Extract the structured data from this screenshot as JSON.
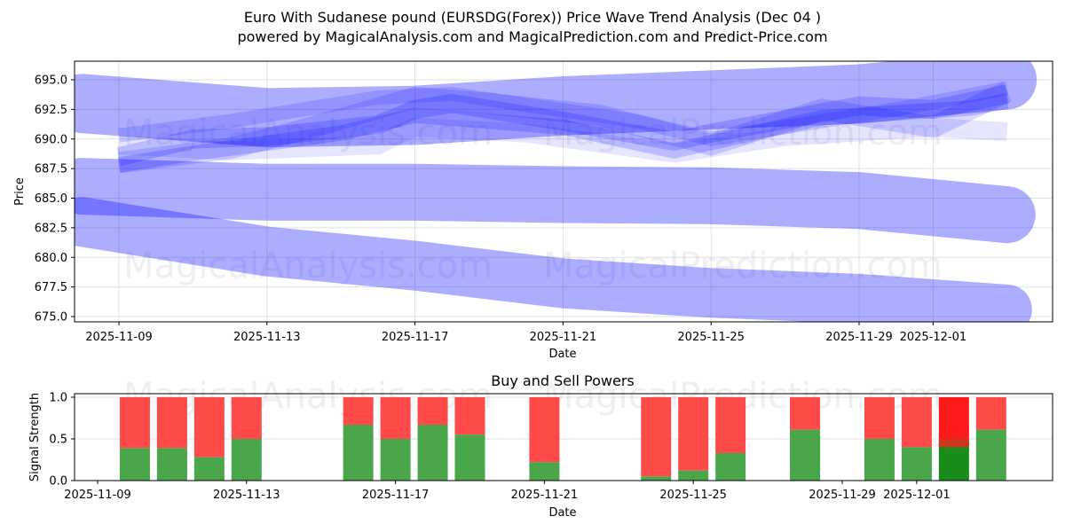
{
  "header": {
    "title": "Euro With Sudanese pound (EURSDG(Forex)) Price Wave Trend Analysis (Dec 04 )",
    "subtitle": "powered by MagicalAnalysis.com and MagicalPrediction.com and Predict-Price.com"
  },
  "watermarks": [
    "MagicalAnalysis.com",
    "MagicalPrediction.com"
  ],
  "colors": {
    "band": "#0000ff",
    "buy": "#4aa64a",
    "sell": "#ff4a4a",
    "buy_highlight": "#1a8c1a",
    "sell_highlight": "#ff1a1a",
    "grid": "#e0e0e0"
  },
  "chart_data": [
    {
      "type": "area",
      "title": "Euro With Sudanese pound (EURSDG(Forex)) Price Wave Trend Analysis (Dec 04 )",
      "xlabel": "Date",
      "ylabel": "Price",
      "ylim": [
        674.8,
        696.5
      ],
      "yticks": [
        "675.0",
        "677.5",
        "680.0",
        "682.5",
        "685.0",
        "687.5",
        "690.0",
        "692.5",
        "695.0"
      ],
      "xticks": [
        "2025-11-09",
        "2025-11-13",
        "2025-11-17",
        "2025-11-21",
        "2025-11-25",
        "2025-11-29",
        "2025-12-01"
      ],
      "grid": true,
      "series": [
        {
          "name": "wave-upper-trend",
          "x": [
            "2025-11-08",
            "2025-11-13",
            "2025-11-17",
            "2025-11-21",
            "2025-11-25",
            "2025-11-29",
            "2025-12-03"
          ],
          "center": [
            693.0,
            691.8,
            692.0,
            692.8,
            693.3,
            693.8,
            695.0
          ],
          "width": 5.0,
          "opacity": 0.32
        },
        {
          "name": "wave-mid-trend",
          "x": [
            "2025-11-08",
            "2025-11-13",
            "2025-11-17",
            "2025-11-21",
            "2025-11-25",
            "2025-11-29",
            "2025-12-03"
          ],
          "center": [
            686.0,
            685.5,
            685.5,
            685.3,
            685.2,
            684.8,
            683.6
          ],
          "width": 4.8,
          "opacity": 0.32
        },
        {
          "name": "wave-lower-trend",
          "x": [
            "2025-11-08",
            "2025-11-13",
            "2025-11-17",
            "2025-11-21",
            "2025-11-25",
            "2025-11-29",
            "2025-12-03"
          ],
          "center": [
            683.0,
            680.5,
            679.3,
            677.8,
            677.0,
            676.5,
            675.6
          ],
          "width": 4.2,
          "opacity": 0.32
        },
        {
          "name": "wave-short-1",
          "x": [
            "2025-11-09",
            "2025-11-11",
            "2025-11-13",
            "2025-11-16",
            "2025-11-17",
            "2025-11-18",
            "2025-11-21",
            "2025-11-24",
            "2025-11-25",
            "2025-11-29",
            "2025-12-01",
            "2025-12-03"
          ],
          "center": [
            688.5,
            690.0,
            690.2,
            691.2,
            692.5,
            693.0,
            691.5,
            689.8,
            690.5,
            692.8,
            692.5,
            693.8
          ],
          "width": 1.6,
          "opacity": 0.18
        },
        {
          "name": "wave-short-2",
          "x": [
            "2025-11-09",
            "2025-11-12",
            "2025-11-14",
            "2025-11-17",
            "2025-11-19",
            "2025-11-22",
            "2025-11-25",
            "2025-11-28",
            "2025-12-01",
            "2025-12-03"
          ],
          "center": [
            688.0,
            689.2,
            690.8,
            693.5,
            693.0,
            692.0,
            689.5,
            692.5,
            691.0,
            694.0
          ],
          "width": 1.8,
          "opacity": 0.15
        },
        {
          "name": "wave-short-3",
          "x": [
            "2025-11-09",
            "2025-11-12",
            "2025-11-16",
            "2025-11-17",
            "2025-11-20",
            "2025-11-24",
            "2025-11-27",
            "2025-12-01",
            "2025-12-03"
          ],
          "center": [
            689.5,
            689.0,
            689.5,
            691.0,
            690.5,
            688.8,
            690.2,
            691.0,
            690.6
          ],
          "width": 1.6,
          "opacity": 0.1
        },
        {
          "name": "wave-short-4",
          "x": [
            "2025-11-09",
            "2025-11-11",
            "2025-11-15",
            "2025-11-17",
            "2025-11-21",
            "2025-11-24",
            "2025-11-28",
            "2025-12-02",
            "2025-12-03"
          ],
          "center": [
            687.8,
            688.8,
            690.5,
            692.0,
            691.0,
            689.0,
            691.8,
            692.6,
            693.2
          ],
          "width": 1.3,
          "opacity": 0.18
        },
        {
          "name": "wave-short-5",
          "x": [
            "2025-11-09",
            "2025-11-12",
            "2025-11-16",
            "2025-11-18",
            "2025-11-23",
            "2025-11-25",
            "2025-11-30",
            "2025-12-03"
          ],
          "center": [
            690.3,
            691.5,
            693.5,
            693.8,
            691.5,
            690.0,
            692.5,
            694.3
          ],
          "width": 1.2,
          "opacity": 0.14
        }
      ]
    },
    {
      "type": "bar",
      "title": "Buy and Sell Powers",
      "xlabel": "Date",
      "ylabel": "Signal Strength",
      "ylim": [
        0,
        1.05
      ],
      "yticks": [
        "0.0",
        "0.5",
        "1.0"
      ],
      "xticks": [
        "2025-11-09",
        "2025-11-13",
        "2025-11-17",
        "2025-11-21",
        "2025-11-25",
        "2025-11-29",
        "2025-12-01"
      ],
      "grid": true,
      "categories": [
        "2025-11-10",
        "2025-11-11",
        "2025-11-12",
        "2025-11-13",
        "2025-11-16",
        "2025-11-17",
        "2025-11-18",
        "2025-11-19",
        "2025-11-21",
        "2025-11-24",
        "2025-11-25",
        "2025-11-26",
        "2025-11-28",
        "2025-11-30",
        "2025-12-01",
        "2025-12-02",
        "2025-12-03"
      ],
      "series": [
        {
          "name": "Buy",
          "values": [
            0.39,
            0.39,
            0.28,
            0.5,
            0.67,
            0.5,
            0.67,
            0.55,
            0.22,
            0.05,
            0.12,
            0.33,
            0.61,
            0.5,
            0.4,
            0.4,
            0.61
          ]
        },
        {
          "name": "Sell",
          "values": [
            0.61,
            0.61,
            0.72,
            0.5,
            0.33,
            0.5,
            0.33,
            0.45,
            0.78,
            0.95,
            0.88,
            0.67,
            0.39,
            0.5,
            0.6,
            0.6,
            0.39
          ]
        }
      ],
      "highlight": [
        "2025-12-02"
      ]
    }
  ]
}
